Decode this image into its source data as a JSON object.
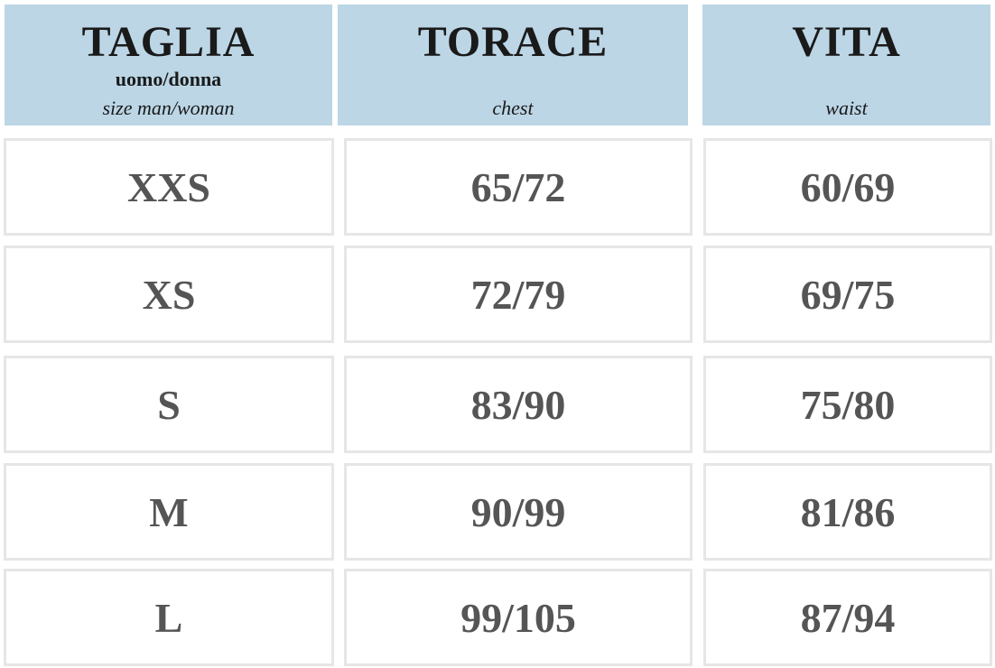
{
  "header": [
    {
      "title": "TAGLIA",
      "subtitle": "uomo/donna",
      "translation": "size man/woman"
    },
    {
      "title": "TORACE",
      "translation": "chest"
    },
    {
      "title": "VITA",
      "translation": "waist"
    }
  ],
  "rows": [
    [
      "XXS",
      "65/72",
      "60/69"
    ],
    [
      "XS",
      "72/79",
      "69/75"
    ],
    [
      "S",
      "83/90",
      "75/80"
    ],
    [
      "M",
      "90/99",
      "81/86"
    ],
    [
      "L",
      "99/105",
      "87/94"
    ]
  ]
}
